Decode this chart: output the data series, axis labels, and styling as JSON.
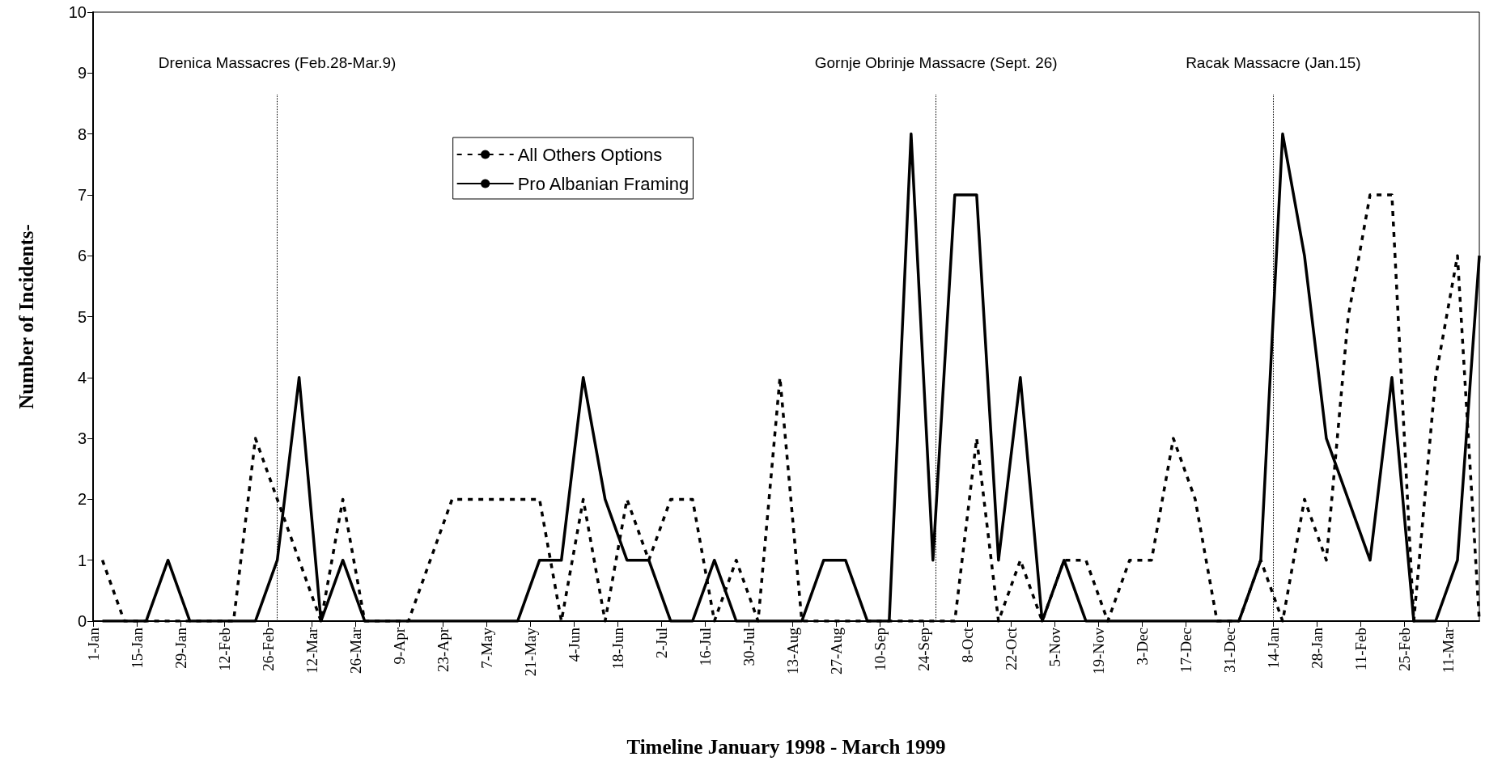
{
  "chart_data": {
    "type": "line",
    "xlabel": "Timeline January 1998 - March 1999",
    "ylabel": "Number of Incidents-",
    "x": [
      "1998-01-04",
      "1998-01-11",
      "1998-01-18",
      "1998-01-25",
      "1998-02-01",
      "1998-02-08",
      "1998-02-15",
      "1998-02-22",
      "1998-03-01",
      "1998-03-08",
      "1998-03-15",
      "1998-03-22",
      "1998-03-29",
      "1998-04-05",
      "1998-04-12",
      "1998-04-19",
      "1998-04-26",
      "1998-05-03",
      "1998-05-10",
      "1998-05-17",
      "1998-05-24",
      "1998-05-31",
      "1998-06-07",
      "1998-06-14",
      "1998-06-21",
      "1998-06-28",
      "1998-07-05",
      "1998-07-12",
      "1998-07-19",
      "1998-07-26",
      "1998-08-02",
      "1998-08-09",
      "1998-08-16",
      "1998-08-23",
      "1998-08-30",
      "1998-09-06",
      "1998-09-13",
      "1998-09-20",
      "1998-09-27",
      "1998-10-04",
      "1998-10-11",
      "1998-10-18",
      "1998-10-25",
      "1998-11-01",
      "1998-11-08",
      "1998-11-15",
      "1998-11-22",
      "1998-11-29",
      "1998-12-06",
      "1998-12-13",
      "1998-12-20",
      "1998-12-27",
      "1999-01-03",
      "1999-01-10",
      "1999-01-17",
      "1999-01-24",
      "1999-01-31",
      "1999-02-07",
      "1999-02-14",
      "1999-02-21",
      "1999-02-28",
      "1999-03-07",
      "1999-03-14",
      "1999-03-21"
    ],
    "series": [
      {
        "name": "All Others Options",
        "color": "#000000",
        "line_style": "dashed",
        "values": [
          1,
          0,
          0,
          0,
          0,
          0,
          0,
          3,
          2,
          1,
          0,
          2,
          0,
          0,
          0,
          1,
          2,
          2,
          2,
          2,
          2,
          0,
          2,
          0,
          2,
          1,
          2,
          2,
          0,
          1,
          0,
          4,
          0,
          0,
          0,
          0,
          0,
          0,
          0,
          0,
          3,
          0,
          1,
          0,
          1,
          1,
          0,
          1,
          1,
          3,
          2,
          0,
          0,
          1,
          0,
          2,
          1,
          5,
          7,
          7,
          0,
          4,
          6,
          0
        ]
      },
      {
        "name": "Pro Albanian Framing",
        "color": "#000000",
        "line_style": "solid",
        "values": [
          0,
          0,
          0,
          1,
          0,
          0,
          0,
          0,
          1,
          4,
          0,
          1,
          0,
          0,
          0,
          0,
          0,
          0,
          0,
          0,
          1,
          1,
          4,
          2,
          1,
          1,
          0,
          0,
          1,
          0,
          0,
          0,
          0,
          1,
          1,
          0,
          0,
          8,
          1,
          7,
          7,
          1,
          4,
          0,
          1,
          0,
          0,
          0,
          0,
          0,
          0,
          0,
          0,
          1,
          8,
          6,
          3,
          2,
          1,
          4,
          0,
          0,
          1,
          6
        ]
      }
    ],
    "xlim": [
      "1998-01-01",
      "1999-03-21"
    ],
    "xticks": [
      {
        "value": "1998-01-01",
        "label": "1-Jan"
      },
      {
        "value": "1998-01-15",
        "label": "15-Jan"
      },
      {
        "value": "1998-01-29",
        "label": "29-Jan"
      },
      {
        "value": "1998-02-12",
        "label": "12-Feb"
      },
      {
        "value": "1998-02-26",
        "label": "26-Feb"
      },
      {
        "value": "1998-03-12",
        "label": "12-Mar"
      },
      {
        "value": "1998-03-26",
        "label": "26-Mar"
      },
      {
        "value": "1998-04-09",
        "label": "9-Apr"
      },
      {
        "value": "1998-04-23",
        "label": "23-Apr"
      },
      {
        "value": "1998-05-07",
        "label": "7-May"
      },
      {
        "value": "1998-05-21",
        "label": "21-May"
      },
      {
        "value": "1998-06-04",
        "label": "4-Jun"
      },
      {
        "value": "1998-06-18",
        "label": "18-Jun"
      },
      {
        "value": "1998-07-02",
        "label": "2-Jul"
      },
      {
        "value": "1998-07-16",
        "label": "16-Jul"
      },
      {
        "value": "1998-07-30",
        "label": "30-Jul"
      },
      {
        "value": "1998-08-13",
        "label": "13-Aug"
      },
      {
        "value": "1998-08-27",
        "label": "27-Aug"
      },
      {
        "value": "1998-09-10",
        "label": "10-Sep"
      },
      {
        "value": "1998-09-24",
        "label": "24-Sep"
      },
      {
        "value": "1998-10-08",
        "label": "8-Oct"
      },
      {
        "value": "1998-10-22",
        "label": "22-Oct"
      },
      {
        "value": "1998-11-05",
        "label": "5-Nov"
      },
      {
        "value": "1998-11-19",
        "label": "19-Nov"
      },
      {
        "value": "1998-12-03",
        "label": "3-Dec"
      },
      {
        "value": "1998-12-17",
        "label": "17-Dec"
      },
      {
        "value": "1998-12-31",
        "label": "31-Dec"
      },
      {
        "value": "1999-01-14",
        "label": "14-Jan"
      },
      {
        "value": "1999-01-28",
        "label": "28-Jan"
      },
      {
        "value": "1999-02-11",
        "label": "11-Feb"
      },
      {
        "value": "1999-02-25",
        "label": "25-Feb"
      },
      {
        "value": "1999-03-11",
        "label": "11-Mar"
      }
    ],
    "ylim": [
      0,
      10
    ],
    "yticks": [
      0,
      1,
      2,
      3,
      4,
      5,
      6,
      7,
      8,
      9,
      10
    ],
    "ref_lines": [
      {
        "axis": "x",
        "value": "1998-03-01",
        "label": "Drenica Massacres (Feb.28-Mar.9)",
        "line_style": "dotted",
        "color": "#000000"
      },
      {
        "axis": "x",
        "value": "1998-09-28",
        "label": "Gornje Obrinje Massacre (Sept. 26)",
        "line_style": "dotted",
        "color": "#000000"
      },
      {
        "axis": "x",
        "value": "1999-01-14",
        "label": "Racak Massacre (Jan.15)",
        "line_style": "dotted",
        "color": "#000000"
      }
    ],
    "grid": false,
    "legend": "top",
    "marker": "none"
  }
}
